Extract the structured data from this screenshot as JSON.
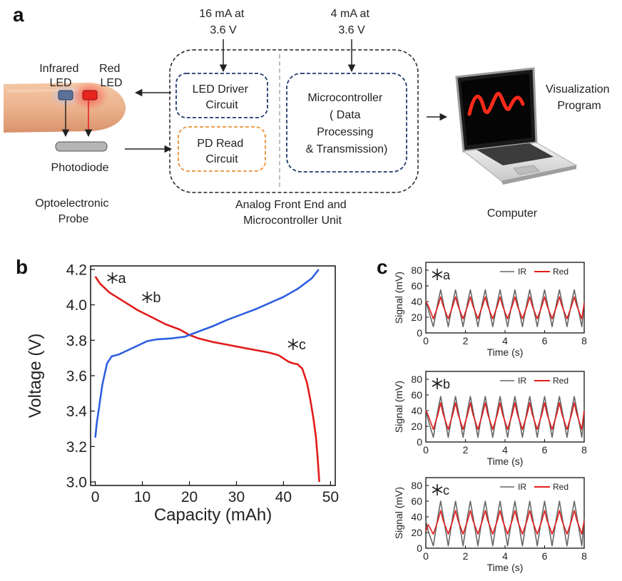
{
  "panel_a": {
    "panel_label": "a",
    "probe": {
      "infrared_led_label": [
        "Infrared",
        "LED"
      ],
      "red_led_label": [
        "Red",
        "LED"
      ],
      "photodiode_label": "Photodiode",
      "caption": [
        "Optoelectronic",
        "Probe"
      ]
    },
    "afe": {
      "supply_left": [
        "16 mA  at",
        "3.6 V"
      ],
      "supply_right": [
        "4 mA  at",
        "3.6 V"
      ],
      "led_driver": [
        "LED Driver",
        "Circuit"
      ],
      "pd_read": [
        "PD Read",
        "Circuit"
      ],
      "microcontroller": [
        "Microcontroller",
        "( Data",
        "Processing",
        "& Transmission)"
      ],
      "caption": [
        "Analog Front End and",
        "Microcontroller Unit"
      ]
    },
    "computer": {
      "program_label": [
        "Visualization",
        "Program"
      ],
      "caption": "Computer"
    },
    "colors": {
      "navy": "#1f3a6e",
      "orange": "#e8913a",
      "red": "#e21b1b",
      "blue": "#2f5fe0"
    }
  },
  "panel_b": {
    "panel_label": "b",
    "chart_data": {
      "type": "line",
      "xlabel": "Capacity (mAh)",
      "ylabel": "Voltage (V)",
      "xlim": [
        -1,
        51
      ],
      "ylim": [
        2.98,
        4.22
      ],
      "xticks": [
        "0",
        "10",
        "20",
        "30",
        "40",
        "50"
      ],
      "yticks": [
        "3.0",
        "3.2",
        "3.4",
        "3.6",
        "3.8",
        "4.0",
        "4.2"
      ],
      "annotations": [
        {
          "text": "a",
          "x": 0.6,
          "y": 4.12
        },
        {
          "text": "b",
          "x": 8.0,
          "y": 4.01
        },
        {
          "text": "c",
          "x": 39.0,
          "y": 3.745
        }
      ],
      "series": [
        {
          "color": "#e21b1b",
          "x": [
            0,
            1,
            3,
            6,
            9,
            12,
            15,
            18,
            20,
            22,
            25,
            28,
            31,
            34,
            37,
            39,
            41,
            42,
            43,
            44,
            45,
            45.8,
            46.4,
            46.9,
            47.3,
            47.6
          ],
          "y": [
            4.16,
            4.12,
            4.07,
            4.02,
            3.97,
            3.93,
            3.89,
            3.86,
            3.83,
            3.81,
            3.79,
            3.775,
            3.76,
            3.745,
            3.73,
            3.715,
            3.68,
            3.67,
            3.665,
            3.64,
            3.56,
            3.45,
            3.35,
            3.25,
            3.12,
            3.0
          ]
        },
        {
          "color": "#2f5fe0",
          "x": [
            0,
            0.3,
            0.8,
            1.5,
            2.5,
            3.5,
            5,
            7,
            9,
            11,
            13,
            16,
            19,
            22,
            25,
            28,
            31,
            34,
            37,
            40,
            43,
            46,
            47.5
          ],
          "y": [
            3.25,
            3.33,
            3.42,
            3.55,
            3.67,
            3.71,
            3.72,
            3.745,
            3.77,
            3.795,
            3.805,
            3.81,
            3.82,
            3.85,
            3.88,
            3.915,
            3.945,
            3.975,
            4.01,
            4.045,
            4.09,
            4.15,
            4.2
          ]
        }
      ]
    }
  },
  "panel_c": {
    "panel_label": "c",
    "chart_data": [
      {
        "type": "line",
        "annotation": "a",
        "xlabel": "Time (s)",
        "ylabel": "Signal (mV)",
        "xlim": [
          0,
          8
        ],
        "ylim": [
          0,
          90
        ],
        "xticks": [
          "0",
          "2",
          "4",
          "6",
          "8"
        ],
        "yticks": [
          "0",
          "20",
          "40",
          "60",
          "80"
        ],
        "legend": "top-right",
        "series": [
          {
            "name": "IR",
            "color": "#666666",
            "x": [
              0,
              0.12,
              0.38,
              0.62,
              0.75,
              0.87,
              1.13,
              1.37,
              1.5,
              1.62,
              1.88,
              2.12,
              2.25,
              2.37,
              2.63,
              2.87,
              3.0,
              3.12,
              3.38,
              3.62,
              3.75,
              3.87,
              4.13,
              4.37,
              4.5,
              4.62,
              4.88,
              5.12,
              5.25,
              5.37,
              5.63,
              5.87,
              6.0,
              6.12,
              6.38,
              6.62,
              6.75,
              6.87,
              7.13,
              7.37,
              7.5,
              7.62,
              7.88,
              8.0
            ],
            "y": [
              42,
              30,
              8,
              40,
              55,
              40,
              8,
              40,
              55,
              40,
              8,
              40,
              55,
              40,
              8,
              40,
              55,
              40,
              8,
              40,
              55,
              40,
              8,
              40,
              55,
              40,
              8,
              40,
              55,
              40,
              8,
              40,
              55,
              40,
              8,
              40,
              55,
              40,
              8,
              40,
              55,
              40,
              8,
              40
            ]
          },
          {
            "name": "Red",
            "color": "#e21b1b",
            "x": [
              0,
              0.12,
              0.38,
              0.62,
              0.75,
              0.87,
              1.13,
              1.37,
              1.5,
              1.62,
              1.88,
              2.12,
              2.25,
              2.37,
              2.63,
              2.87,
              3.0,
              3.12,
              3.38,
              3.62,
              3.75,
              3.87,
              4.13,
              4.37,
              4.5,
              4.62,
              4.88,
              5.12,
              5.25,
              5.37,
              5.63,
              5.87,
              6.0,
              6.12,
              6.38,
              6.62,
              6.75,
              6.87,
              7.13,
              7.37,
              7.5,
              7.62,
              7.88,
              8.0
            ],
            "y": [
              40,
              35,
              18,
              35,
              46,
              35,
              18,
              35,
              46,
              35,
              18,
              35,
              46,
              35,
              18,
              35,
              46,
              35,
              18,
              35,
              46,
              35,
              18,
              35,
              46,
              35,
              18,
              35,
              46,
              35,
              18,
              35,
              46,
              35,
              18,
              35,
              46,
              35,
              18,
              35,
              46,
              35,
              18,
              38
            ]
          }
        ]
      },
      {
        "type": "line",
        "annotation": "b",
        "xlabel": "Time (s)",
        "ylabel": "Signal (mV)",
        "xlim": [
          0,
          8
        ],
        "ylim": [
          0,
          90
        ],
        "xticks": [
          "0",
          "2",
          "4",
          "6",
          "8"
        ],
        "yticks": [
          "0",
          "20",
          "40",
          "60",
          "80"
        ],
        "legend": "top-right",
        "series": [
          {
            "name": "IR",
            "color": "#666666",
            "x": [
              0,
              0.12,
              0.38,
              0.62,
              0.75,
              0.87,
              1.13,
              1.37,
              1.5,
              1.62,
              1.88,
              2.12,
              2.25,
              2.37,
              2.63,
              2.87,
              3.0,
              3.12,
              3.38,
              3.62,
              3.75,
              3.87,
              4.13,
              4.37,
              4.5,
              4.62,
              4.88,
              5.12,
              5.25,
              5.37,
              5.63,
              5.87,
              6.0,
              6.12,
              6.38,
              6.62,
              6.75,
              6.87,
              7.13,
              7.37,
              7.5,
              7.62,
              7.88,
              8.0
            ],
            "y": [
              42,
              28,
              6,
              42,
              58,
              42,
              6,
              42,
              58,
              42,
              6,
              42,
              58,
              42,
              6,
              42,
              58,
              42,
              6,
              42,
              58,
              42,
              6,
              42,
              58,
              42,
              6,
              42,
              58,
              42,
              6,
              42,
              58,
              42,
              6,
              42,
              58,
              42,
              6,
              42,
              58,
              42,
              6,
              42
            ]
          },
          {
            "name": "Red",
            "color": "#e21b1b",
            "x": [
              0,
              0.12,
              0.38,
              0.62,
              0.75,
              0.87,
              1.13,
              1.37,
              1.5,
              1.62,
              1.88,
              2.12,
              2.25,
              2.37,
              2.63,
              2.87,
              3.0,
              3.12,
              3.38,
              3.62,
              3.75,
              3.87,
              4.13,
              4.37,
              4.5,
              4.62,
              4.88,
              5.12,
              5.25,
              5.37,
              5.63,
              5.87,
              6.0,
              6.12,
              6.38,
              6.62,
              6.75,
              6.87,
              7.13,
              7.37,
              7.5,
              7.62,
              7.88,
              8.0
            ],
            "y": [
              40,
              34,
              16,
              36,
              50,
              36,
              16,
              36,
              50,
              36,
              16,
              36,
              50,
              36,
              16,
              36,
              50,
              36,
              16,
              36,
              50,
              36,
              16,
              36,
              50,
              36,
              16,
              36,
              50,
              36,
              16,
              36,
              50,
              36,
              16,
              36,
              50,
              36,
              16,
              36,
              50,
              36,
              16,
              40
            ]
          }
        ]
      },
      {
        "type": "line",
        "annotation": "c",
        "xlabel": "Time (s)",
        "ylabel": "Signal (mV)",
        "xlim": [
          0,
          8
        ],
        "ylim": [
          0,
          90
        ],
        "xticks": [
          "0",
          "2",
          "4",
          "6",
          "8"
        ],
        "yticks": [
          "0",
          "20",
          "40",
          "60",
          "80"
        ],
        "legend": "top-right",
        "series": [
          {
            "name": "IR",
            "color": "#666666",
            "x": [
              0,
              0.12,
              0.38,
              0.62,
              0.75,
              0.87,
              1.13,
              1.37,
              1.5,
              1.62,
              1.88,
              2.12,
              2.25,
              2.37,
              2.63,
              2.87,
              3.0,
              3.12,
              3.38,
              3.62,
              3.75,
              3.87,
              4.13,
              4.37,
              4.5,
              4.62,
              4.88,
              5.12,
              5.25,
              5.37,
              5.63,
              5.87,
              6.0,
              6.12,
              6.38,
              6.62,
              6.75,
              6.87,
              7.13,
              7.37,
              7.5,
              7.62,
              7.88,
              8.0
            ],
            "y": [
              35,
              22,
              3,
              42,
              60,
              42,
              3,
              42,
              60,
              42,
              3,
              42,
              60,
              42,
              3,
              42,
              60,
              42,
              3,
              42,
              60,
              42,
              3,
              42,
              60,
              42,
              3,
              42,
              60,
              42,
              3,
              42,
              60,
              42,
              3,
              42,
              60,
              42,
              3,
              42,
              60,
              42,
              3,
              38
            ]
          },
          {
            "name": "Red",
            "color": "#e21b1b",
            "x": [
              0,
              0.12,
              0.38,
              0.62,
              0.75,
              0.87,
              1.13,
              1.37,
              1.5,
              1.62,
              1.88,
              2.12,
              2.25,
              2.37,
              2.63,
              2.87,
              3.0,
              3.12,
              3.38,
              3.62,
              3.75,
              3.87,
              4.13,
              4.37,
              4.5,
              4.62,
              4.88,
              5.12,
              5.25,
              5.37,
              5.63,
              5.87,
              6.0,
              6.12,
              6.38,
              6.62,
              6.75,
              6.87,
              7.13,
              7.37,
              7.5,
              7.62,
              7.88,
              8.0
            ],
            "y": [
              22,
              30,
              18,
              36,
              48,
              36,
              18,
              36,
              48,
              36,
              18,
              36,
              48,
              36,
              18,
              36,
              48,
              36,
              18,
              36,
              48,
              36,
              18,
              36,
              48,
              36,
              18,
              36,
              48,
              36,
              18,
              36,
              48,
              36,
              18,
              36,
              48,
              36,
              18,
              36,
              48,
              36,
              18,
              35
            ]
          }
        ]
      }
    ]
  }
}
